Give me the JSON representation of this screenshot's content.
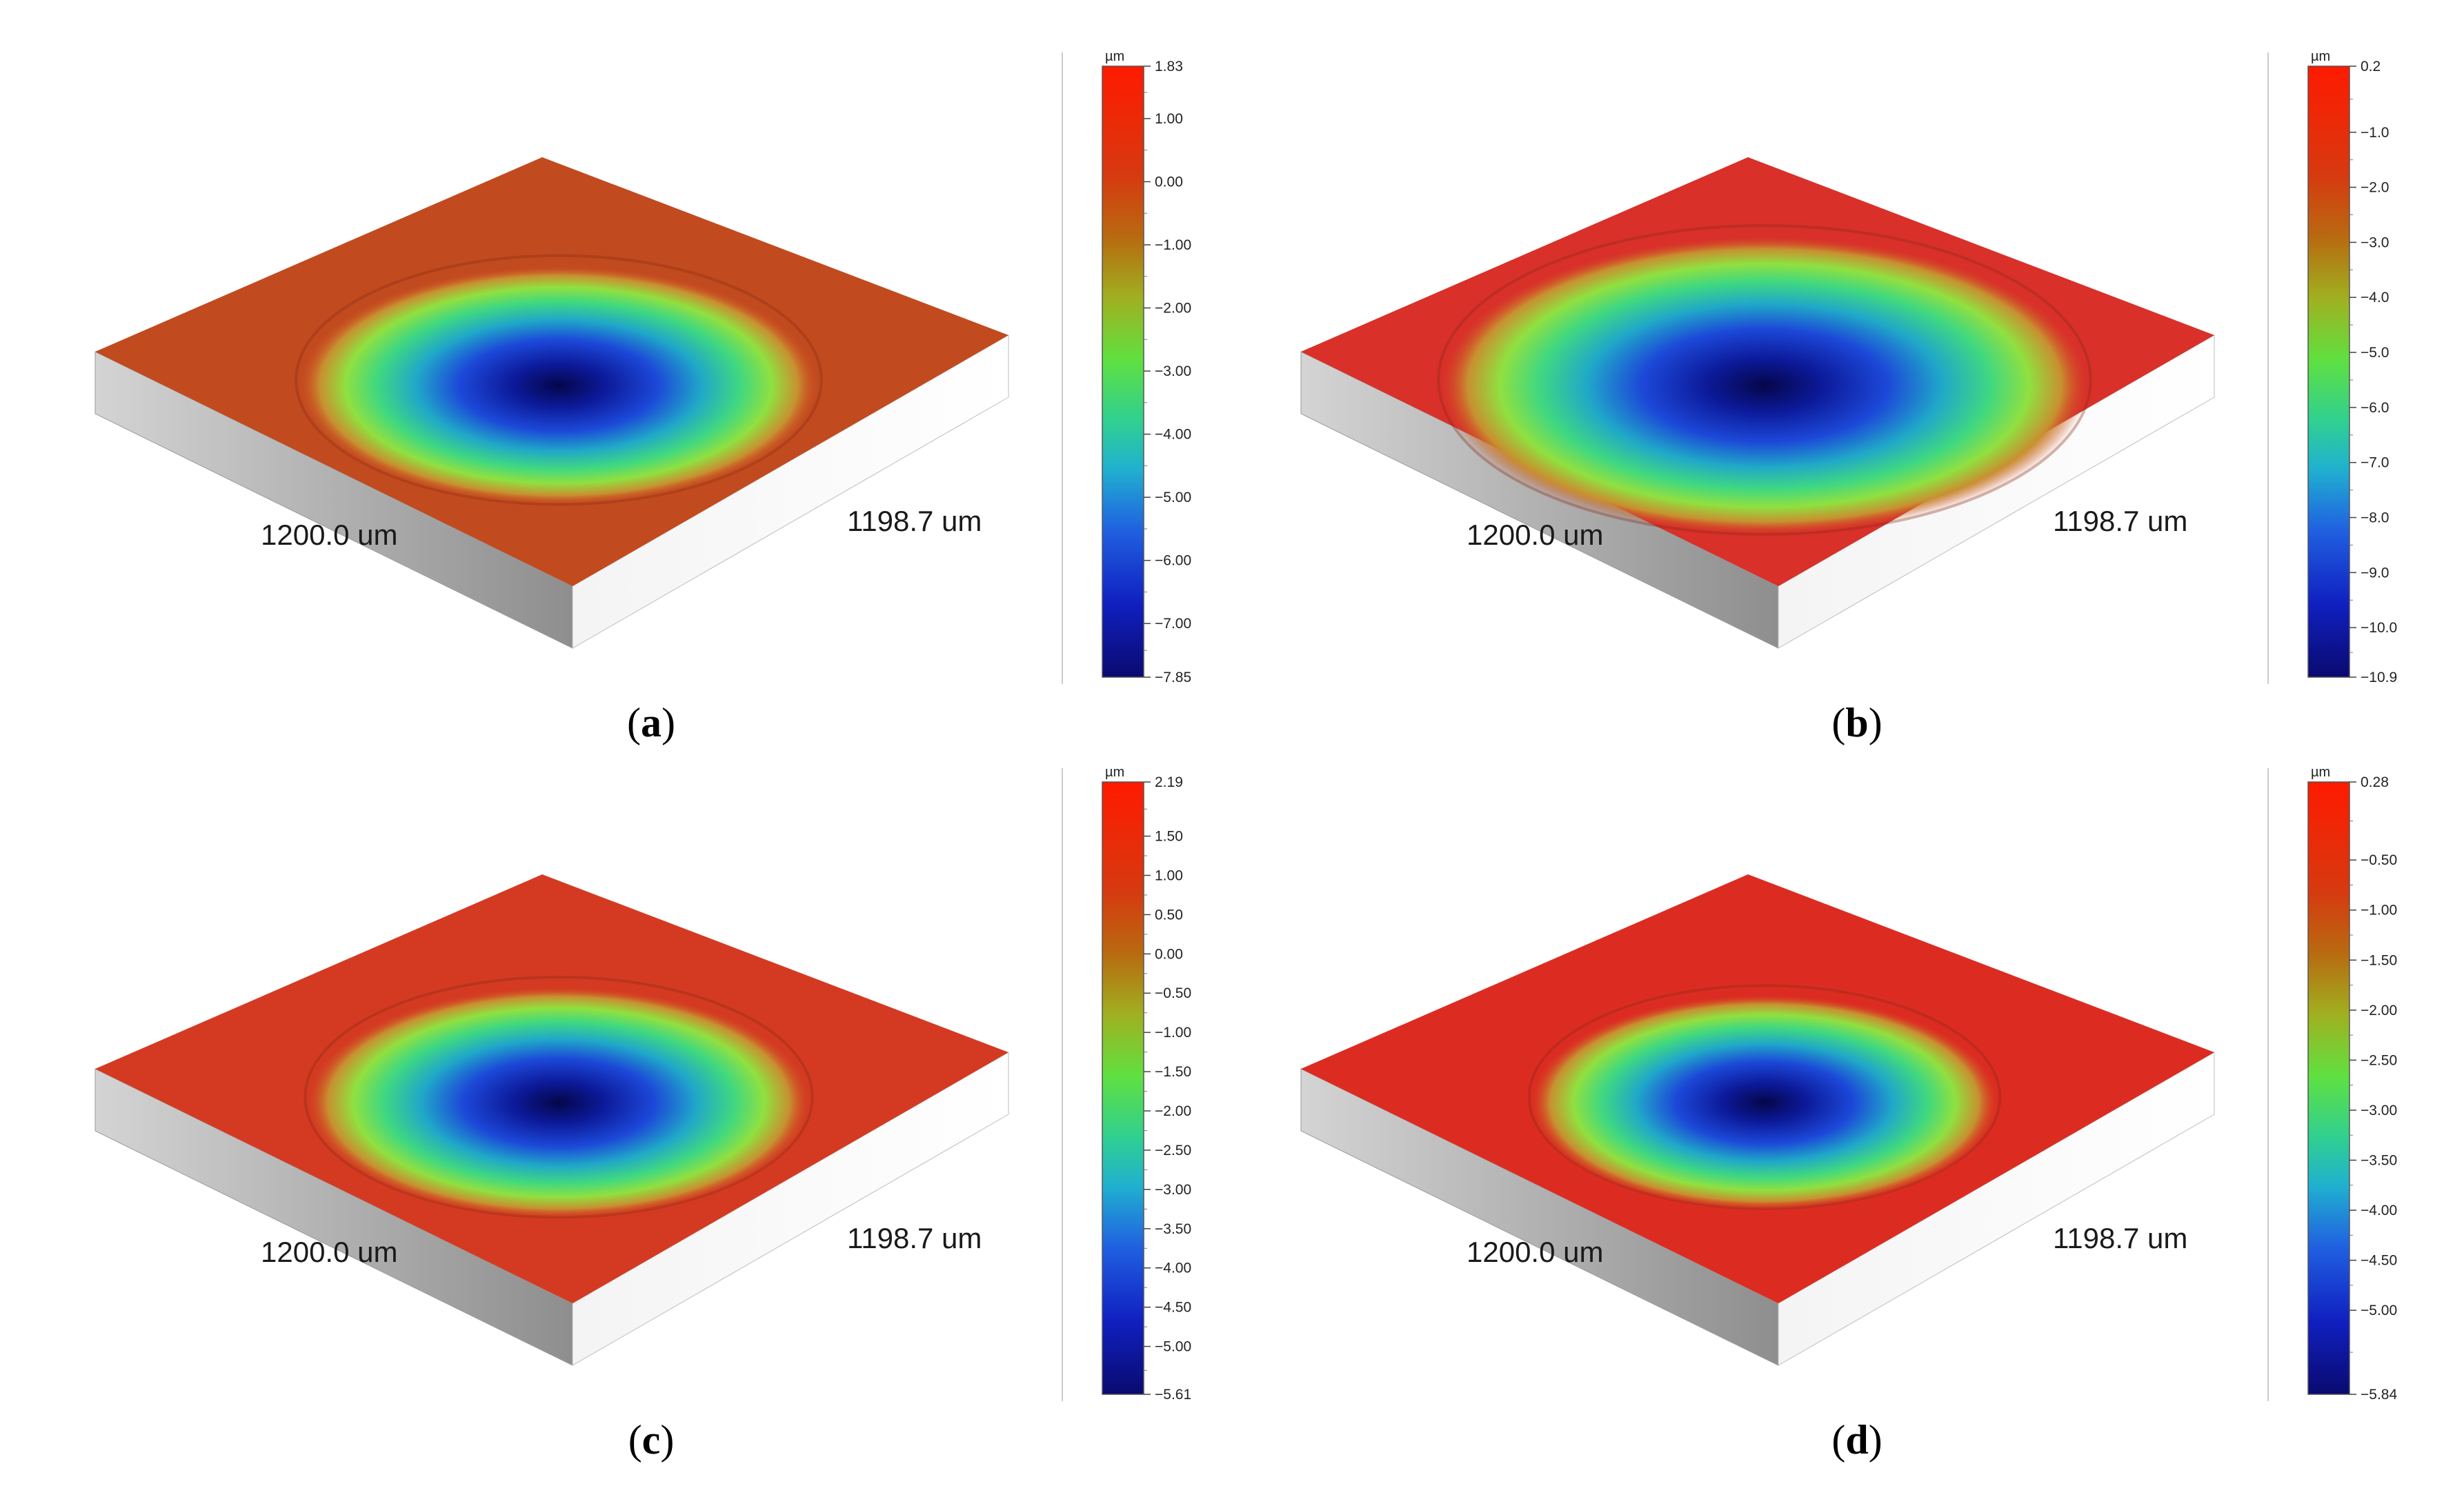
{
  "figure": {
    "panels": [
      {
        "id": "a",
        "label_open": "(",
        "label_letter": "a",
        "label_close": ")",
        "x_extent_label": "1200.0 um",
        "y_extent_label": "1198.7 um",
        "colorbar": {
          "unit": "µm",
          "max": 1.83,
          "min": -7.85,
          "tick_labels": [
            "1.83",
            "1.00",
            "0.00",
            "−1.00",
            "−2.00",
            "−3.00",
            "−4.00",
            "−5.00",
            "−6.00",
            "−7.00",
            "−7.85"
          ],
          "tick_values": [
            1.83,
            1.0,
            0.0,
            -1.0,
            -2.0,
            -3.0,
            -4.0,
            -5.0,
            -6.0,
            -7.0,
            -7.85
          ]
        },
        "surface": {
          "top_color": "#c24a1f",
          "depth_ratio": 1.0,
          "dimple_radius": 0.29
        }
      },
      {
        "id": "b",
        "label_open": "(",
        "label_letter": "b",
        "label_close": ")",
        "x_extent_label": "1200.0 um",
        "y_extent_label": "1198.7 um",
        "colorbar": {
          "unit": "µm",
          "max": 0.2,
          "min": -10.9,
          "tick_labels": [
            "0.2",
            "−1.0",
            "−2.0",
            "−3.0",
            "−4.0",
            "−5.0",
            "−6.0",
            "−7.0",
            "−8.0",
            "−9.0",
            "−10.0",
            "−10.9"
          ],
          "tick_values": [
            0.2,
            -1.0,
            -2.0,
            -3.0,
            -4.0,
            -5.0,
            -6.0,
            -7.0,
            -8.0,
            -9.0,
            -10.0,
            -10.9
          ]
        },
        "surface": {
          "top_color": "#d9302a",
          "depth_ratio": 1.0,
          "dimple_radius": 0.36
        }
      },
      {
        "id": "c",
        "label_open": "(",
        "label_letter": "c",
        "label_close": ")",
        "x_extent_label": "1200.0 um",
        "y_extent_label": "1198.7 um",
        "colorbar": {
          "unit": "µm",
          "max": 2.19,
          "min": -5.61,
          "tick_labels": [
            "2.19",
            "1.50",
            "1.00",
            "0.50",
            "0.00",
            "−0.50",
            "−1.00",
            "−1.50",
            "−2.00",
            "−2.50",
            "−3.00",
            "−3.50",
            "−4.00",
            "−4.50",
            "−5.00",
            "−5.61"
          ],
          "tick_values": [
            2.19,
            1.5,
            1.0,
            0.5,
            0.0,
            -0.5,
            -1.0,
            -1.5,
            -2.0,
            -2.5,
            -3.0,
            -3.5,
            -4.0,
            -4.5,
            -5.0,
            -5.61
          ]
        },
        "surface": {
          "top_color": "#d43a22",
          "depth_ratio": 1.0,
          "dimple_radius": 0.28
        }
      },
      {
        "id": "d",
        "label_open": "(",
        "label_letter": "d",
        "label_close": ")",
        "x_extent_label": "1200.0 um",
        "y_extent_label": "1198.7 um",
        "colorbar": {
          "unit": "µm",
          "max": 0.28,
          "min": -5.84,
          "tick_labels": [
            "0.28",
            "−0.50",
            "−1.00",
            "−1.50",
            "−2.00",
            "−2.50",
            "−3.00",
            "−3.50",
            "−4.00",
            "−4.50",
            "−5.00",
            "−5.84"
          ],
          "tick_values": [
            0.28,
            -0.5,
            -1.0,
            -1.5,
            -2.0,
            -2.5,
            -3.0,
            -3.5,
            -4.0,
            -4.5,
            -5.0,
            -5.84
          ]
        },
        "surface": {
          "top_color": "#dc2c22",
          "depth_ratio": 1.0,
          "dimple_radius": 0.26
        }
      }
    ]
  }
}
